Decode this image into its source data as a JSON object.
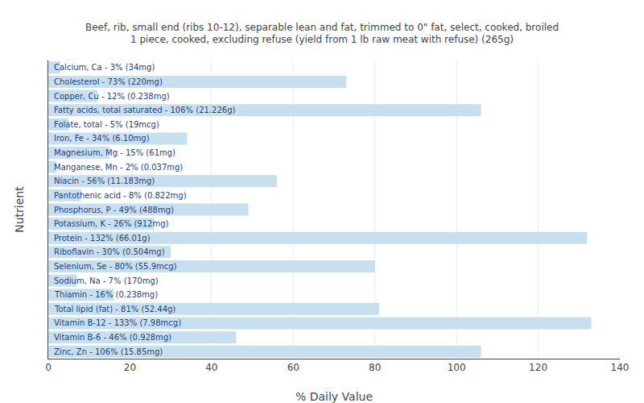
{
  "chart_data": {
    "type": "bar",
    "orientation": "horizontal",
    "title": "Beef, rib, small end (ribs 10-12), separable lean and fat, trimmed to 0\" fat, select, cooked, broiled\n1 piece, cooked, excluding refuse (yield from 1 lb raw meat with refuse) (265g)",
    "xlabel": "% Daily Value",
    "ylabel": "Nutrient",
    "categories": [
      "Calcium, Ca - 3% (34mg)",
      "Cholesterol - 73% (220mg)",
      "Copper, Cu - 12% (0.238mg)",
      "Fatty acids, total saturated - 106% (21.226g)",
      "Folate, total - 5% (19mcg)",
      "Iron, Fe - 34% (6.10mg)",
      "Magnesium, Mg - 15% (61mg)",
      "Manganese, Mn - 2% (0.037mg)",
      "Niacin - 56% (11.183mg)",
      "Pantothenic acid - 8% (0.822mg)",
      "Phosphorus, P - 49% (488mg)",
      "Potassium, K - 26% (912mg)",
      "Protein - 132% (66.01g)",
      "Riboflavin - 30% (0.504mg)",
      "Selenium, Se - 80% (55.9mcg)",
      "Sodium, Na - 7% (170mg)",
      "Thiamin - 16% (0.238mg)",
      "Total lipid (fat) - 81% (52.44g)",
      "Vitamin B-12 - 133% (7.98mcg)",
      "Vitamin B-6 - 46% (0.928mg)",
      "Zinc, Zn - 106% (15.85mg)"
    ],
    "values": [
      3,
      73,
      12,
      106,
      5,
      34,
      15,
      2,
      56,
      8,
      49,
      26,
      132,
      30,
      80,
      7,
      16,
      81,
      133,
      46,
      106
    ],
    "color": "#c8dff0",
    "xlim": [
      0,
      140
    ],
    "xticks": [
      0,
      20,
      40,
      60,
      80,
      100,
      120,
      140
    ],
    "grid": true,
    "tick_labels": "x"
  }
}
